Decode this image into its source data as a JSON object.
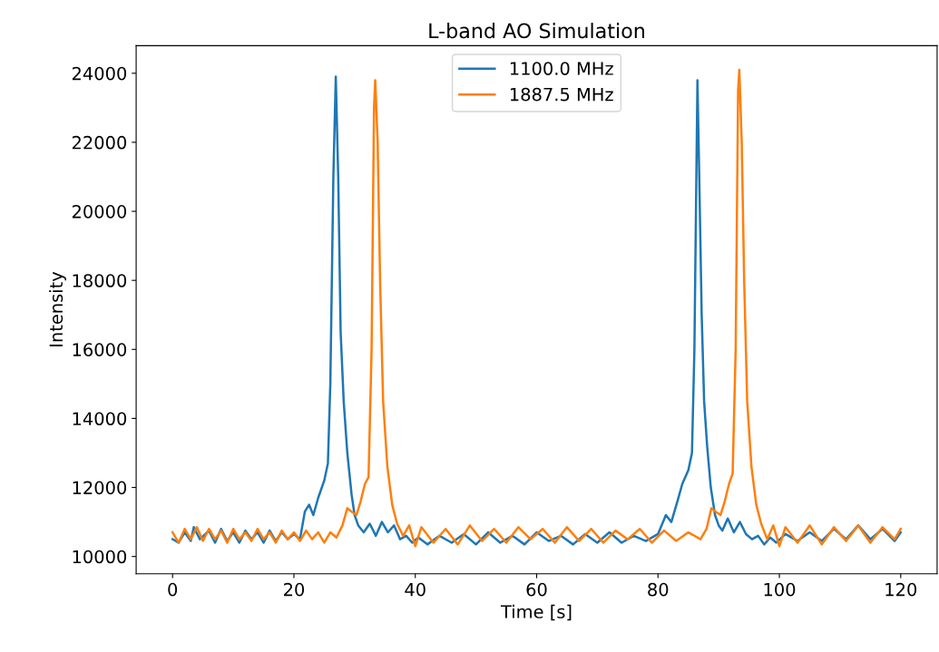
{
  "chart_data": {
    "type": "line",
    "title": "L-band AO Simulation",
    "xlabel": "Time [s]",
    "ylabel": "Intensity",
    "xlim": [
      -6,
      126
    ],
    "xticks": [
      0,
      20,
      40,
      60,
      80,
      100,
      120
    ],
    "ylim": [
      9500,
      24800
    ],
    "yticks": [
      10000,
      12000,
      14000,
      16000,
      18000,
      20000,
      22000,
      24000
    ],
    "grid": false,
    "legend": "upper center",
    "line_style": "solid",
    "marker": "none",
    "series": [
      {
        "name": "1100.0 MHz",
        "color": "#1f77b4",
        "x": [
          0,
          1,
          2,
          3,
          3.5,
          4.5,
          6,
          7,
          8,
          9,
          10,
          11,
          12,
          13,
          14,
          15,
          16,
          17,
          18,
          19,
          20,
          21,
          21.8,
          22.5,
          23.2,
          24,
          25,
          25.6,
          26,
          26.5,
          26.9,
          27.3,
          27.7,
          28.2,
          28.8,
          29.5,
          30,
          30.6,
          31.5,
          32.5,
          33.5,
          34.5,
          35.5,
          36.5,
          37.5,
          38.5,
          39.5,
          40.5,
          42,
          44,
          46,
          48,
          50,
          52,
          54,
          56,
          58,
          60,
          62,
          64,
          66,
          68,
          70,
          72,
          74,
          76,
          78,
          80,
          81.3,
          82.2,
          83.2,
          84,
          85,
          85.6,
          86,
          86.5,
          86.8,
          87.2,
          87.6,
          88.1,
          88.7,
          89.4,
          90,
          90.6,
          91.5,
          92.5,
          93.5,
          94.5,
          95.5,
          96.5,
          97.5,
          98.5,
          99.5,
          101,
          103,
          105,
          107,
          109,
          111,
          113,
          115,
          117,
          119,
          120
        ],
        "values": [
          10500,
          10400,
          10700,
          10450,
          10850,
          10500,
          10750,
          10400,
          10800,
          10450,
          10700,
          10400,
          10750,
          10500,
          10700,
          10400,
          10750,
          10450,
          10700,
          10500,
          10650,
          10500,
          11300,
          11500,
          11200,
          11700,
          12200,
          12700,
          15000,
          21000,
          23900,
          21000,
          16500,
          14500,
          13000,
          11800,
          11200,
          10900,
          10700,
          10950,
          10600,
          11000,
          10700,
          10900,
          10500,
          10600,
          10400,
          10550,
          10350,
          10600,
          10400,
          10650,
          10350,
          10700,
          10400,
          10600,
          10350,
          10700,
          10450,
          10600,
          10350,
          10650,
          10400,
          10700,
          10400,
          10600,
          10450,
          10650,
          11200,
          11000,
          11600,
          12100,
          12500,
          13000,
          16000,
          23800,
          21000,
          17000,
          14500,
          13200,
          12000,
          11200,
          10900,
          10750,
          11100,
          10700,
          11000,
          10650,
          10500,
          10600,
          10350,
          10550,
          10400,
          10650,
          10450,
          10700,
          10450,
          10800,
          10500,
          10900,
          10500,
          10800,
          10450,
          10700
        ]
      },
      {
        "name": "1887.5 MHz",
        "color": "#ff7f0e",
        "x": [
          0,
          1,
          2,
          3,
          4,
          5,
          6,
          7,
          8,
          9,
          10,
          11,
          12,
          13,
          14,
          15,
          16,
          17,
          18,
          19,
          20,
          21,
          22,
          23,
          24,
          25,
          26,
          27,
          28,
          28.8,
          29.5,
          30.3,
          31,
          31.7,
          32.3,
          32.8,
          33.2,
          33.4,
          33.8,
          34.2,
          34.7,
          35.4,
          36.2,
          37,
          38,
          39,
          40,
          41,
          43,
          45,
          47,
          49,
          51,
          53,
          55,
          57,
          59,
          61,
          63,
          65,
          67,
          69,
          71,
          73,
          75,
          77,
          79,
          81,
          83,
          85,
          87,
          88,
          88.8,
          89.5,
          90.3,
          91,
          91.7,
          92.3,
          92.8,
          93.2,
          93.4,
          93.8,
          94.2,
          94.7,
          95.4,
          96.2,
          97,
          98,
          99,
          100,
          101,
          103,
          105,
          107,
          109,
          111,
          113,
          115,
          117,
          119,
          120
        ],
        "values": [
          10700,
          10400,
          10800,
          10500,
          10850,
          10450,
          10800,
          10500,
          10750,
          10400,
          10800,
          10500,
          10700,
          10450,
          10800,
          10500,
          10700,
          10400,
          10750,
          10500,
          10700,
          10450,
          10750,
          10500,
          10700,
          10400,
          10700,
          10550,
          10900,
          11400,
          11300,
          11200,
          11600,
          12100,
          12300,
          16000,
          23000,
          23800,
          22000,
          18000,
          14500,
          12600,
          11500,
          10950,
          10600,
          10900,
          10300,
          10850,
          10400,
          10800,
          10350,
          10900,
          10450,
          10800,
          10400,
          10850,
          10500,
          10800,
          10400,
          10850,
          10450,
          10800,
          10400,
          10750,
          10500,
          10800,
          10400,
          10750,
          10450,
          10700,
          10500,
          10800,
          11400,
          11300,
          11200,
          11600,
          12100,
          12400,
          16000,
          23500,
          24100,
          22000,
          18000,
          14500,
          12600,
          11500,
          10950,
          10500,
          10900,
          10300,
          10850,
          10400,
          10900,
          10350,
          10850,
          10450,
          10900,
          10400,
          10850,
          10500,
          10800
        ]
      }
    ]
  }
}
